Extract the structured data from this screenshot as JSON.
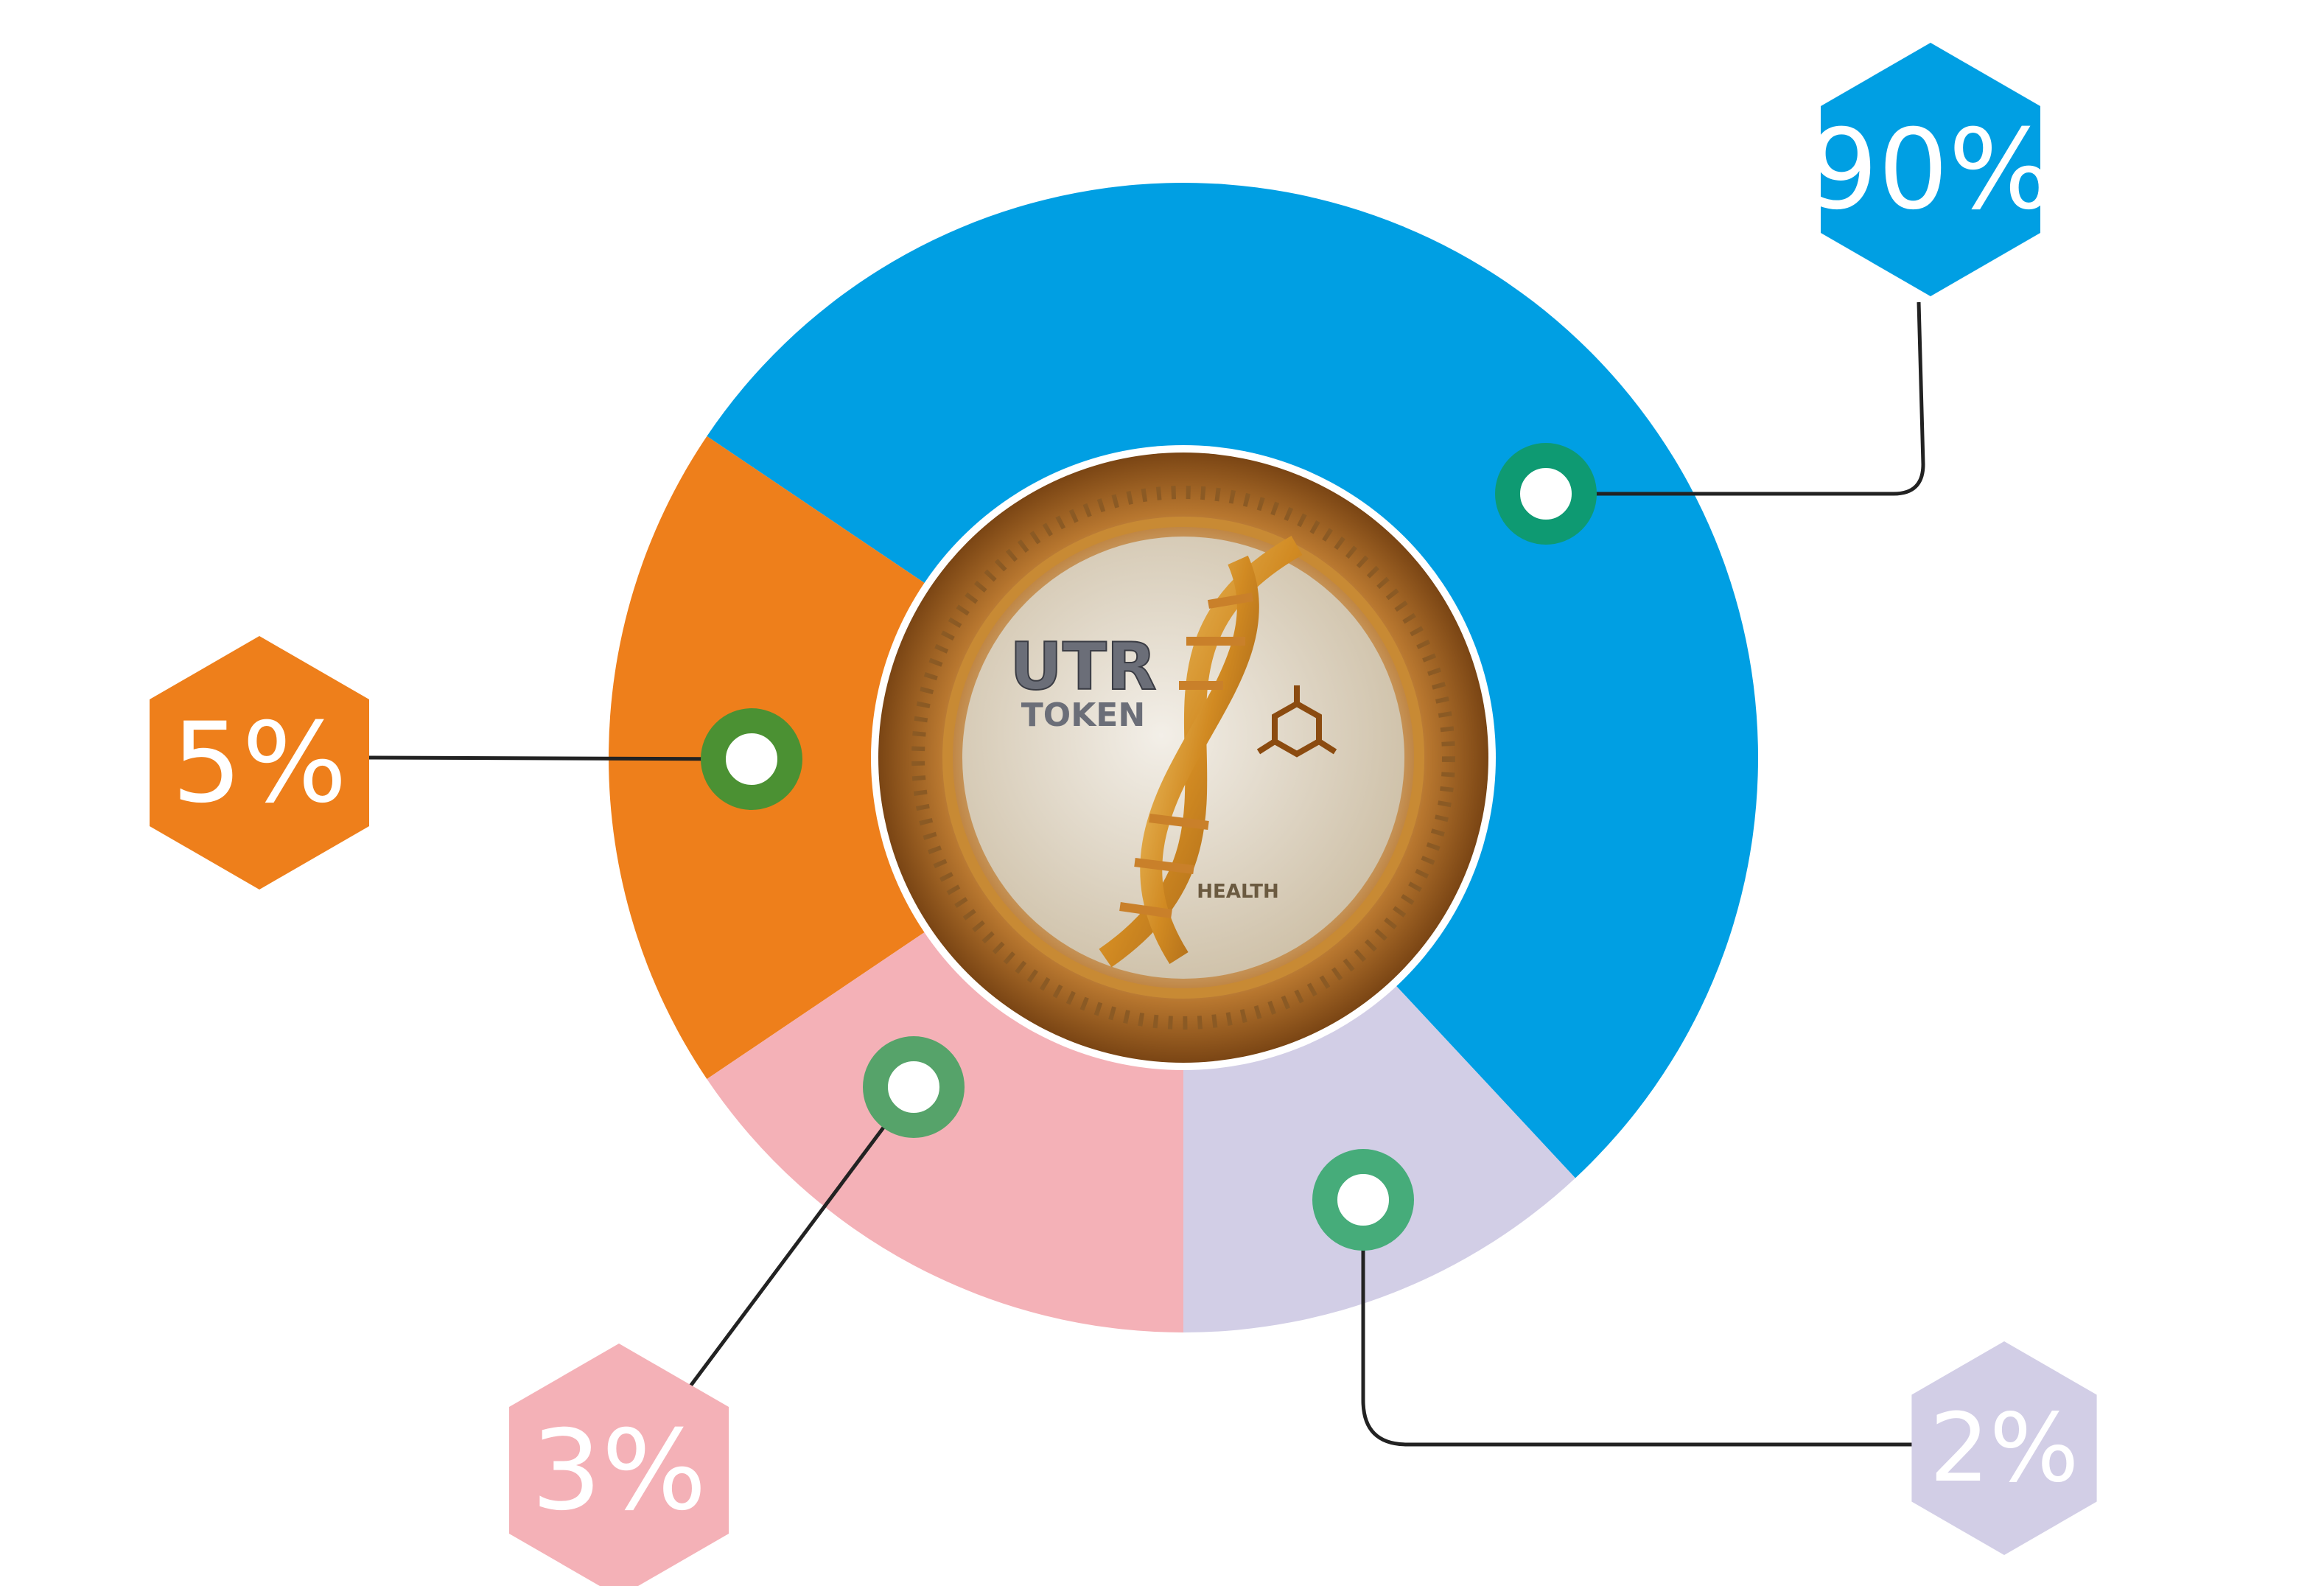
{
  "chart_data": {
    "type": "pie",
    "style": "donut",
    "slices": [
      {
        "label": "90%",
        "value": 90,
        "color": "#009fe3"
      },
      {
        "label": "5%",
        "value": 5,
        "color": "#ee7f1b"
      },
      {
        "label": "3%",
        "value": 3,
        "color": "#f4b1b7"
      },
      {
        "label": "2%",
        "value": 2,
        "color": "#d2cee6"
      }
    ],
    "marker_colors": [
      "#0e9a72",
      "#4b9133",
      "#56a36a",
      "#46ac7a"
    ],
    "leader_line_color": "#222222",
    "legend": "none",
    "center_emblem": {
      "title": "UTR",
      "subtitle": "TOKEN",
      "footer": "HEALTH",
      "icon": "dna-helix-icon"
    }
  }
}
